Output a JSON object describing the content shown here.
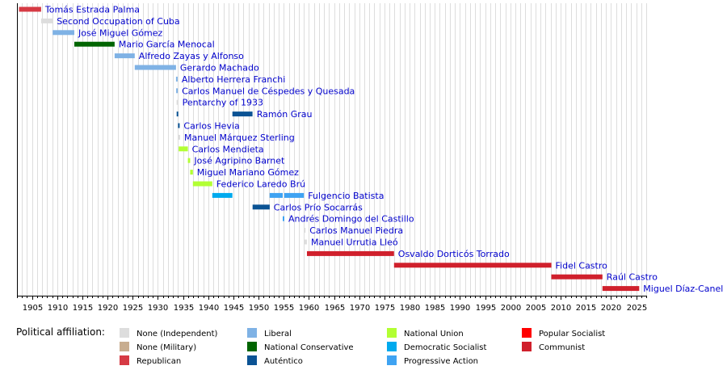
{
  "chart_data": {
    "type": "timeline",
    "title": "",
    "xlim": [
      1902,
      2027
    ],
    "x_ticks": [
      1905,
      1910,
      1915,
      1920,
      1925,
      1930,
      1935,
      1940,
      1945,
      1950,
      1955,
      1960,
      1965,
      1970,
      1975,
      1980,
      1985,
      1990,
      1995,
      2000,
      2005,
      2010,
      2015,
      2020,
      2025
    ],
    "grid": true,
    "rows": [
      {
        "label": "Tomás Estrada Palma",
        "segments": [
          {
            "start": 1902.4,
            "end": 1906.8,
            "party": "Republican"
          }
        ]
      },
      {
        "label": "Second Occupation of Cuba",
        "segments": [
          {
            "start": 1906.8,
            "end": 1909.1,
            "party": "None (Independent)"
          }
        ]
      },
      {
        "label": "José Miguel Gómez",
        "segments": [
          {
            "start": 1909.1,
            "end": 1913.4,
            "party": "Liberal"
          }
        ]
      },
      {
        "label": "Mario García Menocal",
        "segments": [
          {
            "start": 1913.4,
            "end": 1921.4,
            "party": "National Conservative"
          }
        ]
      },
      {
        "label": "Alfredo Zayas y Alfonso",
        "segments": [
          {
            "start": 1921.4,
            "end": 1925.4,
            "party": "Liberal"
          }
        ]
      },
      {
        "label": "Gerardo Machado",
        "segments": [
          {
            "start": 1925.4,
            "end": 1933.6,
            "party": "Liberal"
          }
        ]
      },
      {
        "label": "Alberto Herrera Franchi",
        "segments": [
          {
            "start": 1933.6,
            "end": 1933.62,
            "party": "Liberal"
          }
        ]
      },
      {
        "label": "Carlos Manuel de Céspedes y Quesada",
        "segments": [
          {
            "start": 1933.62,
            "end": 1933.7,
            "party": "Liberal"
          }
        ]
      },
      {
        "label": "Pentarchy of 1933",
        "segments": [
          {
            "start": 1933.7,
            "end": 1933.72,
            "party": "None (Independent)"
          }
        ]
      },
      {
        "label": "Ramón Grau",
        "segments": [
          {
            "start": 1933.72,
            "end": 1934.0,
            "party": "Auténtico"
          },
          {
            "start": 1944.8,
            "end": 1948.8,
            "party": "Auténtico"
          }
        ]
      },
      {
        "label": "Carlos Hevia",
        "segments": [
          {
            "start": 1934.0,
            "end": 1934.1,
            "party": "Auténtico"
          }
        ]
      },
      {
        "label": "Manuel Márquez Sterling",
        "segments": [
          {
            "start": 1934.1,
            "end": 1934.12,
            "party": "None (Independent)"
          }
        ]
      },
      {
        "label": "Carlos Mendieta",
        "segments": [
          {
            "start": 1934.12,
            "end": 1935.95,
            "party": "National Union"
          }
        ]
      },
      {
        "label": "José Agripino Barnet",
        "segments": [
          {
            "start": 1935.95,
            "end": 1936.4,
            "party": "National Union"
          }
        ]
      },
      {
        "label": "Miguel Mariano Gómez",
        "segments": [
          {
            "start": 1936.4,
            "end": 1936.95,
            "party": "National Union"
          }
        ]
      },
      {
        "label": "Federico Laredo Brú",
        "segments": [
          {
            "start": 1936.95,
            "end": 1940.8,
            "party": "National Union"
          }
        ]
      },
      {
        "label": "Fulgencio Batista",
        "segments": [
          {
            "start": 1940.8,
            "end": 1944.8,
            "party": "Democratic Socialist"
          },
          {
            "start": 1952.2,
            "end": 1954.8,
            "party": "Progressive Action"
          },
          {
            "start": 1955.1,
            "end": 1959.0,
            "party": "Progressive Action"
          }
        ]
      },
      {
        "label": "Carlos Prío Socarrás",
        "segments": [
          {
            "start": 1948.8,
            "end": 1952.2,
            "party": "Auténtico"
          }
        ]
      },
      {
        "label": "Andrés Domingo del Castillo",
        "segments": [
          {
            "start": 1954.8,
            "end": 1955.1,
            "party": "Progressive Action"
          }
        ]
      },
      {
        "label": "Carlos Manuel Piedra",
        "segments": [
          {
            "start": 1959.0,
            "end": 1959.05,
            "party": "None (Independent)"
          }
        ]
      },
      {
        "label": "Manuel Urrutia Lleó",
        "segments": [
          {
            "start": 1959.05,
            "end": 1959.6,
            "party": "None (Independent)"
          }
        ]
      },
      {
        "label": "Osvaldo Dorticós Torrado",
        "segments": [
          {
            "start": 1959.6,
            "end": 1976.9,
            "party": "Communist"
          }
        ]
      },
      {
        "label": "Fidel Castro",
        "segments": [
          {
            "start": 1976.9,
            "end": 2008.15,
            "party": "Communist"
          }
        ]
      },
      {
        "label": "Raúl Castro",
        "segments": [
          {
            "start": 2008.15,
            "end": 2018.3,
            "party": "Communist"
          }
        ]
      },
      {
        "label": "Miguel Díaz-Canel",
        "segments": [
          {
            "start": 2018.3,
            "end": 2025.6,
            "party": "Communist"
          }
        ]
      }
    ],
    "legend_title": "Political affiliation:",
    "legend": [
      {
        "name": "None (Independent)",
        "color": "#dddddd"
      },
      {
        "name": "None (Military)",
        "color": "#c8ad8f"
      },
      {
        "name": "Republican",
        "color": "#d63a44"
      },
      {
        "name": "Liberal",
        "color": "#7fb2e5"
      },
      {
        "name": "National Conservative",
        "color": "#006400"
      },
      {
        "name": "Auténtico",
        "color": "#0b5394"
      },
      {
        "name": "National Union",
        "color": "#b2ff33"
      },
      {
        "name": "Democratic Socialist",
        "color": "#00aaee"
      },
      {
        "name": "Progressive Action",
        "color": "#3fa3f2"
      },
      {
        "name": "Popular Socialist",
        "color": "#ff0000"
      },
      {
        "name": "Communist",
        "color": "#d0202c"
      }
    ]
  }
}
